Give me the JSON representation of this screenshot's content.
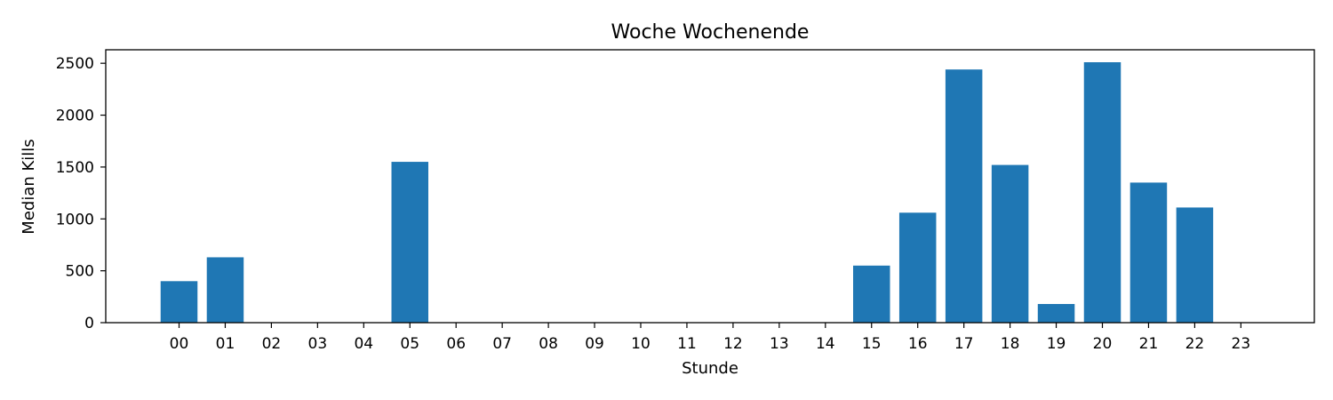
{
  "chart_data": {
    "type": "bar",
    "title": "Woche Wochenende",
    "xlabel": "Stunde",
    "ylabel": "Median Kills",
    "categories": [
      "00",
      "01",
      "02",
      "03",
      "04",
      "05",
      "06",
      "07",
      "08",
      "09",
      "10",
      "11",
      "12",
      "13",
      "14",
      "15",
      "16",
      "17",
      "18",
      "19",
      "20",
      "21",
      "22",
      "23"
    ],
    "values": [
      400,
      630,
      0,
      0,
      0,
      1550,
      0,
      0,
      0,
      0,
      0,
      0,
      0,
      0,
      0,
      550,
      1060,
      2440,
      1520,
      180,
      2510,
      1350,
      1110,
      0
    ],
    "ylim": [
      0,
      2630
    ],
    "yticks": [
      0,
      500,
      1000,
      1500,
      2000,
      2500
    ],
    "bar_color": "#1f77b4",
    "grid": false
  }
}
